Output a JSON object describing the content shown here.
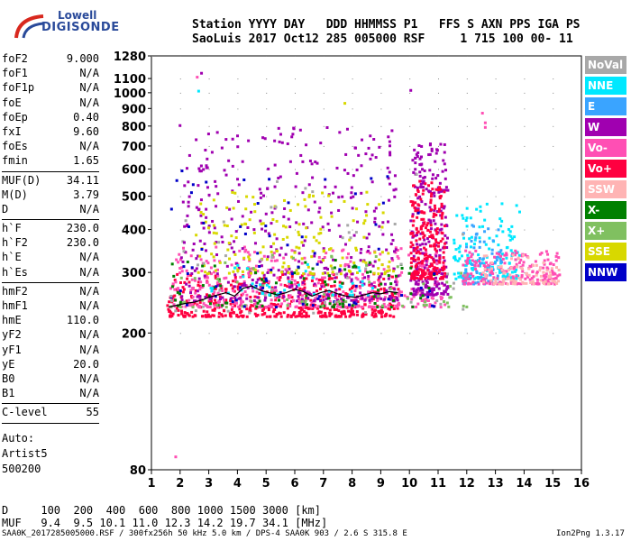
{
  "logo": {
    "line1": "Lowell",
    "line2": "DIGISONDE"
  },
  "header": {
    "line1": "Station YYYY DAY   DDD HHMMSS P1   FFS S AXN PPS IGA PS",
    "line2": "SaoLuis 2017 Oct12 285 005000 RSF     1 715 100 00- 11"
  },
  "params": {
    "group1": [
      {
        "name": "foF2",
        "value": "9.000"
      },
      {
        "name": "foF1",
        "value": "N/A"
      },
      {
        "name": "foF1p",
        "value": "N/A"
      },
      {
        "name": "foE",
        "value": "N/A"
      },
      {
        "name": "foEp",
        "value": "0.40"
      },
      {
        "name": "fxI",
        "value": "9.60"
      },
      {
        "name": "foEs",
        "value": "N/A"
      },
      {
        "name": "fmin",
        "value": "1.65"
      }
    ],
    "group2": [
      {
        "name": "MUF(D)",
        "value": "34.11"
      },
      {
        "name": "M(D)",
        "value": "3.79"
      },
      {
        "name": "D",
        "value": "N/A"
      }
    ],
    "group3": [
      {
        "name": "h`F",
        "value": "230.0"
      },
      {
        "name": "h`F2",
        "value": "230.0"
      },
      {
        "name": "h`E",
        "value": "N/A"
      },
      {
        "name": "h`Es",
        "value": "N/A"
      }
    ],
    "group4": [
      {
        "name": "hmF2",
        "value": "N/A"
      },
      {
        "name": "hmF1",
        "value": "N/A"
      },
      {
        "name": "hmE",
        "value": "110.0"
      },
      {
        "name": "yF2",
        "value": "N/A"
      },
      {
        "name": "yF1",
        "value": "N/A"
      },
      {
        "name": "yE",
        "value": "20.0"
      },
      {
        "name": "B0",
        "value": "N/A"
      },
      {
        "name": "B1",
        "value": "N/A"
      }
    ],
    "group5": [
      {
        "name": "C-level",
        "value": "55"
      }
    ]
  },
  "auto": {
    "line1": "Auto:",
    "line2": "Artist5",
    "line3": "500200"
  },
  "legend": [
    {
      "label": "NoVal",
      "color": "#a8a8a8",
      "text_color": "#ffffff"
    },
    {
      "label": "NNE",
      "color": "#00e8ff",
      "text_color": "#ffffff"
    },
    {
      "label": "E",
      "color": "#3aa4ff",
      "text_color": "#ffffff"
    },
    {
      "label": "W",
      "color": "#a000b0",
      "text_color": "#ffffff"
    },
    {
      "label": "Vo-",
      "color": "#ff4fb4",
      "text_color": "#ffffff"
    },
    {
      "label": "Vo+",
      "color": "#ff0040",
      "text_color": "#ffffff"
    },
    {
      "label": "SSW",
      "color": "#ffb4b4",
      "text_color": "#ffffff"
    },
    {
      "label": "X-",
      "color": "#008000",
      "text_color": "#ffffff"
    },
    {
      "label": "X+",
      "color": "#80c060",
      "text_color": "#ffffff"
    },
    {
      "label": "SSE",
      "color": "#d8d800",
      "text_color": "#ffffff"
    },
    {
      "label": "NNW",
      "color": "#0000c8",
      "text_color": "#ffffff"
    }
  ],
  "dmuf": {
    "d_line": "D     100  200  400  600  800 1000 1500 3000 [km]",
    "muf_line": "MUF   9.4  9.5 10.1 11.0 12.3 14.2 19.7 34.1 [MHz]"
  },
  "footer": "SAA0K_2017285005000.RSF / 300fx256h 50 kHz 5.0 km / DPS-4 SAA0K 903 / 2.6 S 315.8 E",
  "version": "Ion2Png 1.3.17",
  "chart_data": {
    "type": "scatter",
    "title": "",
    "xlabel": "",
    "ylabel": "",
    "xlim": [
      1,
      16
    ],
    "ylim": [
      80,
      1280
    ],
    "y_scale": "log",
    "x_ticks": [
      1,
      2,
      3,
      4,
      5,
      6,
      7,
      8,
      9,
      10,
      11,
      12,
      13,
      14,
      15,
      16
    ],
    "y_ticks": [
      80,
      200,
      300,
      400,
      500,
      600,
      700,
      800,
      900,
      1000,
      1100,
      1280
    ],
    "grid": true,
    "trace": {
      "x": [
        1.6,
        1.8,
        2.0,
        2.2,
        2.5,
        2.8,
        3.0,
        3.3,
        3.6,
        3.9,
        4.2,
        4.5,
        4.8,
        5.1,
        5.4,
        5.7,
        6.0,
        6.3,
        6.6,
        6.9,
        7.2,
        7.5,
        7.8,
        8.1,
        8.4,
        8.7,
        9.0,
        9.3,
        9.6
      ],
      "y": [
        238,
        240,
        242,
        244,
        246,
        250,
        254,
        258,
        262,
        256,
        270,
        274,
        266,
        262,
        258,
        262,
        268,
        264,
        256,
        262,
        266,
        260,
        256,
        254,
        258,
        262,
        260,
        264,
        262
      ]
    },
    "clusters": [
      {
        "series": "Vo+",
        "x": [
          1.5,
          9.6
        ],
        "y": [
          225,
          300
        ],
        "n": 500
      },
      {
        "series": "Vo-",
        "x": [
          1.6,
          11.2
        ],
        "y": [
          240,
          360
        ],
        "n": 450
      },
      {
        "series": "W",
        "x": [
          2.0,
          9.6
        ],
        "y": [
          250,
          800
        ],
        "n": 420
      },
      {
        "series": "SSE",
        "x": [
          2.5,
          9.4
        ],
        "y": [
          300,
          520
        ],
        "n": 170
      },
      {
        "series": "W",
        "x": [
          10.0,
          11.3
        ],
        "y": [
          260,
          720
        ],
        "n": 260
      },
      {
        "series": "Vo+",
        "x": [
          10.0,
          11.2
        ],
        "y": [
          290,
          560
        ],
        "n": 240
      },
      {
        "series": "NNE",
        "x": [
          11.5,
          13.8
        ],
        "y": [
          290,
          480
        ],
        "n": 160
      },
      {
        "series": "E",
        "x": [
          11.8,
          13.2
        ],
        "y": [
          280,
          420
        ],
        "n": 60
      },
      {
        "series": "Vo-",
        "x": [
          11.8,
          15.2
        ],
        "y": [
          280,
          350
        ],
        "n": 200
      },
      {
        "series": "SSW",
        "x": [
          12.5,
          15.2
        ],
        "y": [
          280,
          340
        ],
        "n": 90
      },
      {
        "series": "X-",
        "x": [
          1.6,
          11.0
        ],
        "y": [
          240,
          330
        ],
        "n": 90
      },
      {
        "series": "X+",
        "x": [
          1.6,
          12.0
        ],
        "y": [
          240,
          340
        ],
        "n": 60
      },
      {
        "series": "NNW",
        "x": [
          1.6,
          11.0
        ],
        "y": [
          240,
          600
        ],
        "n": 70
      },
      {
        "series": "NoVal",
        "x": [
          1.6,
          12.0
        ],
        "y": [
          230,
          600
        ],
        "n": 50
      },
      {
        "series": "NNE",
        "x": [
          3.0,
          9.0
        ],
        "y": [
          260,
          320
        ],
        "n": 40
      }
    ],
    "outliers": [
      {
        "series": "W",
        "x": 2.7,
        "y": 1150
      },
      {
        "series": "Vo-",
        "x": 2.55,
        "y": 1120
      },
      {
        "series": "W",
        "x": 10.0,
        "y": 1025
      },
      {
        "series": "Vo-",
        "x": 12.5,
        "y": 880
      },
      {
        "series": "Vo-",
        "x": 12.6,
        "y": 825
      },
      {
        "series": "Vo-",
        "x": 12.6,
        "y": 800
      },
      {
        "series": "W",
        "x": 1.95,
        "y": 810
      },
      {
        "series": "NNE",
        "x": 2.6,
        "y": 1020
      },
      {
        "series": "SSE",
        "x": 7.7,
        "y": 940
      },
      {
        "series": "W",
        "x": 2.1,
        "y": 370
      },
      {
        "series": "Vo-",
        "x": 1.8,
        "y": 88
      }
    ]
  }
}
